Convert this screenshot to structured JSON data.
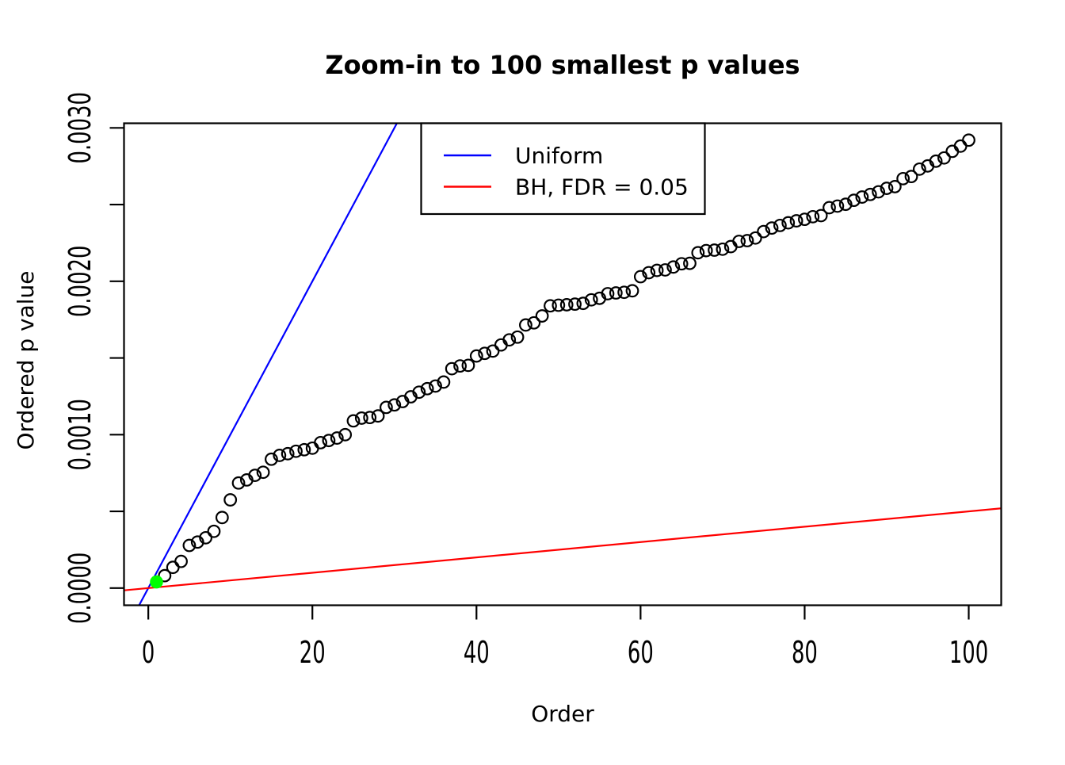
{
  "chart_data": {
    "type": "scatter",
    "title": "Zoom-in to 100 smallest p values",
    "xlabel": "Order",
    "ylabel": "Ordered p value",
    "xlim": [
      -2.96,
      103.96
    ],
    "ylim": [
      -0.000112,
      0.00303
    ],
    "x_ticks": [
      0,
      20,
      40,
      60,
      80,
      100
    ],
    "y_ticks": [
      0,
      0.0005,
      0.001,
      0.0015,
      0.002,
      0.0025,
      0.003
    ],
    "y_tick_labels": [
      "0.0000",
      "",
      "0.0010",
      "",
      "0.0020",
      "",
      "0.0030"
    ],
    "grid": false,
    "order_range": [
      1,
      100
    ],
    "p_values": [
      4e-05,
      8.1e-05,
      0.000135,
      0.000174,
      0.000278,
      0.0003,
      0.000328,
      0.00037,
      0.00046,
      0.000575,
      0.000685,
      0.000705,
      0.000735,
      0.000755,
      0.00084,
      0.000865,
      0.000876,
      0.000892,
      0.000902,
      0.000912,
      0.000948,
      0.000962,
      0.000978,
      0.001,
      0.00109,
      0.001108,
      0.001112,
      0.001122,
      0.001178,
      0.001194,
      0.001216,
      0.001247,
      0.001277,
      0.0013,
      0.001317,
      0.001343,
      0.00143,
      0.001448,
      0.001452,
      0.001513,
      0.00153,
      0.001545,
      0.001585,
      0.001618,
      0.001636,
      0.001715,
      0.001729,
      0.001774,
      0.00184,
      0.001844,
      0.001847,
      0.001851,
      0.001856,
      0.001879,
      0.001889,
      0.001919,
      0.001924,
      0.001928,
      0.001938,
      0.00203,
      0.002056,
      0.002071,
      0.002074,
      0.002093,
      0.002114,
      0.002117,
      0.002186,
      0.0022,
      0.002203,
      0.002209,
      0.002226,
      0.00226,
      0.002265,
      0.002282,
      0.002324,
      0.002347,
      0.002364,
      0.002381,
      0.002394,
      0.002404,
      0.002421,
      0.002428,
      0.00248,
      0.00249,
      0.002502,
      0.002528,
      0.002549,
      0.002566,
      0.002583,
      0.002606,
      0.002617,
      0.002669,
      0.002683,
      0.002731,
      0.002752,
      0.002783,
      0.002804,
      0.002847,
      0.002881,
      0.00292
    ],
    "highlight_point": {
      "order": 1,
      "p": 4e-05,
      "color": "#00ff00"
    },
    "lines": [
      {
        "name": "Uniform",
        "color": "#0000ff",
        "slope": 0.0001,
        "intercept": 0
      },
      {
        "name": "BH, FDR = 0.05",
        "color": "#ff0000",
        "slope": 5e-06,
        "intercept": 0
      }
    ],
    "legend": {
      "position": "top-center",
      "entries": [
        {
          "label": "Uniform",
          "color": "#0000ff"
        },
        {
          "label": "BH, FDR = 0.05",
          "color": "#ff0000"
        }
      ]
    },
    "point_color": "#000000",
    "background": "#ffffff"
  }
}
